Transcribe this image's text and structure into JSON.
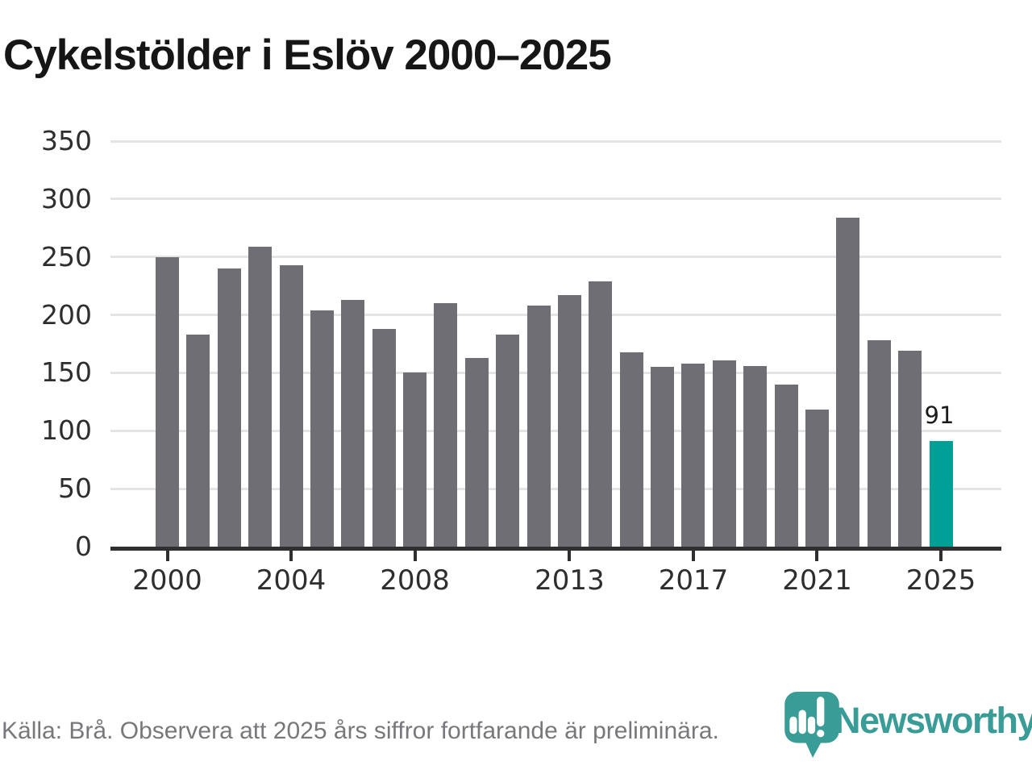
{
  "title": "Cykelstölder i Eslöv 2000–2025",
  "source_note": "Källa: Brå. Observera att 2025 års siffror fortfarande är preliminära.",
  "brand": {
    "name": "Newsworthy",
    "icon": "newsworthy-pin-barchart-icon",
    "color": "#3a9c97"
  },
  "annotation": {
    "year": 2025,
    "value_label": "91"
  },
  "colors": {
    "bar": "#6e6e74",
    "highlight": "#00a096",
    "grid": "#e4e4e4",
    "axis": "#2f2f31",
    "title_text": "#161616",
    "tick_text": "#2e2e2e",
    "source_text": "#77787b"
  },
  "chart_data": {
    "type": "bar",
    "title": "Cykelstölder i Eslöv 2000–2025",
    "xlabel": "",
    "ylabel": "",
    "categories": [
      2000,
      2001,
      2002,
      2003,
      2004,
      2005,
      2006,
      2007,
      2008,
      2009,
      2010,
      2011,
      2012,
      2013,
      2014,
      2015,
      2016,
      2017,
      2018,
      2019,
      2020,
      2021,
      2022,
      2023,
      2024,
      2025
    ],
    "values": [
      250,
      183,
      240,
      259,
      243,
      204,
      213,
      188,
      150,
      210,
      163,
      183,
      208,
      217,
      229,
      168,
      155,
      158,
      161,
      156,
      140,
      118,
      284,
      178,
      169,
      91
    ],
    "ylim": [
      0,
      350
    ],
    "yticks": [
      0,
      50,
      100,
      150,
      200,
      250,
      300,
      350
    ],
    "xticks": [
      2000,
      2004,
      2008,
      2013,
      2017,
      2021,
      2025
    ],
    "grid": true,
    "legend": "none",
    "highlight_year": 2025,
    "highlight_color": "#00a096",
    "bar_color": "#6e6e74"
  }
}
